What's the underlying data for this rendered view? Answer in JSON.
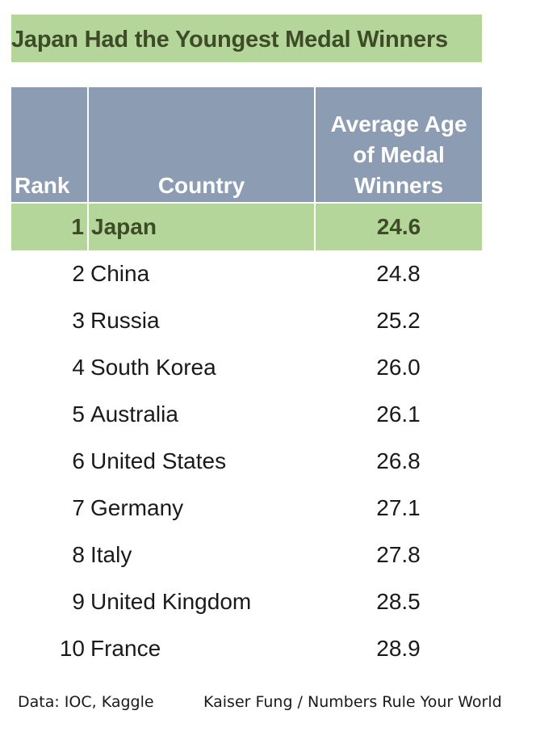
{
  "title": "Japan Had the Youngest Medal Winners",
  "headers": {
    "rank": "Rank",
    "country": "Country",
    "age_line1": "Average Age",
    "age_line2": "of Medal",
    "age_line3": "Winners"
  },
  "colors": {
    "highlight": "#b5d69b",
    "header": "#8b9cb3",
    "title_text": "#3d4b27"
  },
  "chart_data": {
    "type": "table",
    "title": "Japan Had the Youngest Medal Winners",
    "columns": [
      "Rank",
      "Country",
      "Average Age of Medal Winners"
    ],
    "rows": [
      {
        "rank": "1",
        "country": "Japan",
        "age": "24.6",
        "highlight": true
      },
      {
        "rank": "2",
        "country": "China",
        "age": "24.8"
      },
      {
        "rank": "3",
        "country": "Russia",
        "age": "25.2"
      },
      {
        "rank": "4",
        "country": "South Korea",
        "age": "26.0"
      },
      {
        "rank": "5",
        "country": "Australia",
        "age": "26.1"
      },
      {
        "rank": "6",
        "country": "United States",
        "age": "26.8"
      },
      {
        "rank": "7",
        "country": "Germany",
        "age": "27.1"
      },
      {
        "rank": "8",
        "country": "Italy",
        "age": "27.8"
      },
      {
        "rank": "9",
        "country": "United Kingdom",
        "age": "28.5"
      },
      {
        "rank": "10",
        "country": "France",
        "age": "28.9"
      }
    ]
  },
  "footer": {
    "source": "Data: IOC, Kaggle",
    "credit": "Kaiser Fung / Numbers Rule Your World"
  }
}
